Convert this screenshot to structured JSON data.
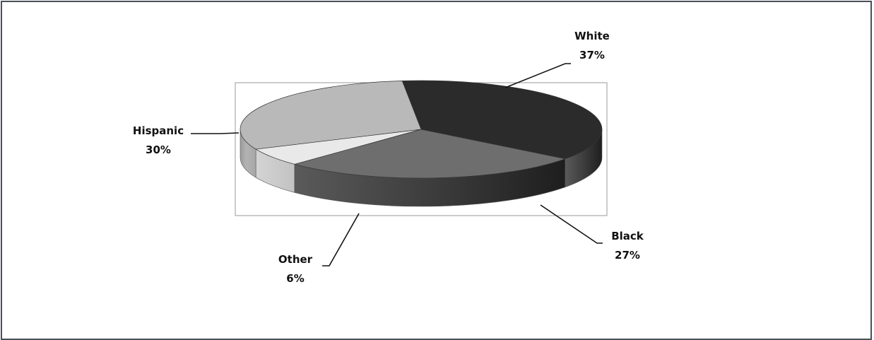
{
  "chart_data": {
    "type": "pie",
    "variant": "3d",
    "title": "",
    "slices": [
      {
        "label": "White",
        "percent_label": "37%",
        "value": 37,
        "color": "#2b2b2b"
      },
      {
        "label": "Black",
        "percent_label": "27%",
        "value": 27,
        "color": "#6e6e6e"
      },
      {
        "label": "Other",
        "percent_label": "6%",
        "value": 6,
        "color": "#e9e9e9"
      },
      {
        "label": "Hispanic",
        "percent_label": "30%",
        "value": 30,
        "color": "#b9b9b9"
      }
    ],
    "legend": "none",
    "plot_area_border": true
  }
}
